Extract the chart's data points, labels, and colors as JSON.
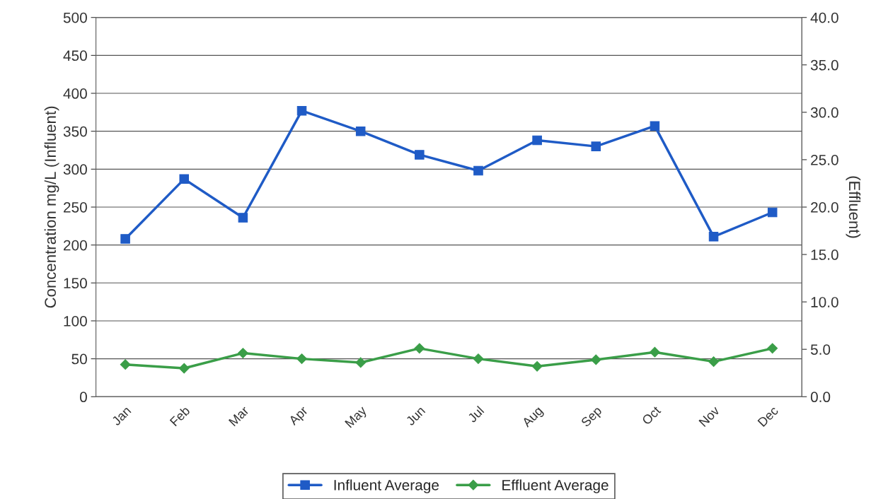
{
  "chart_data": {
    "type": "line",
    "categories": [
      "Jan",
      "Feb",
      "Mar",
      "Apr",
      "May",
      "Jun",
      "Jul",
      "Aug",
      "Sep",
      "Oct",
      "Nov",
      "Dec"
    ],
    "series": [
      {
        "name": "Influent Average",
        "color": "#1f5bc6",
        "marker": "square",
        "values": [
          208,
          287,
          236,
          377,
          350,
          319,
          298,
          338,
          330,
          357,
          211,
          243
        ]
      },
      {
        "name": "Effluent Average",
        "color": "#3a9e48",
        "marker": "diamond",
        "axis": "y2",
        "values": [
          3.4,
          3.0,
          4.6,
          4.0,
          3.6,
          5.1,
          4.0,
          3.2,
          3.9,
          4.7,
          3.7,
          5.1
        ]
      }
    ],
    "ylabel": "Concentration mg/L (Influent)",
    "y2label": "(Effluent)",
    "ylim": [
      0,
      500
    ],
    "yticks": [
      0,
      50,
      100,
      150,
      200,
      250,
      300,
      350,
      400,
      450,
      500
    ],
    "y2lim": [
      0,
      40
    ],
    "y2ticks": [
      {
        "value": 0,
        "label": "0.0"
      },
      {
        "value": 5,
        "label": "5.0"
      },
      {
        "value": 10,
        "label": "10.0"
      },
      {
        "value": 15,
        "label": "15.0"
      },
      {
        "value": 20,
        "label": "20.0"
      },
      {
        "value": 25,
        "label": "25.0"
      },
      {
        "value": 30,
        "label": "30.0"
      },
      {
        "value": 35,
        "label": "35.0"
      },
      {
        "value": 40,
        "label": "40.0"
      }
    ],
    "grid": "y",
    "legend": "bottom",
    "line_style": "solid"
  }
}
